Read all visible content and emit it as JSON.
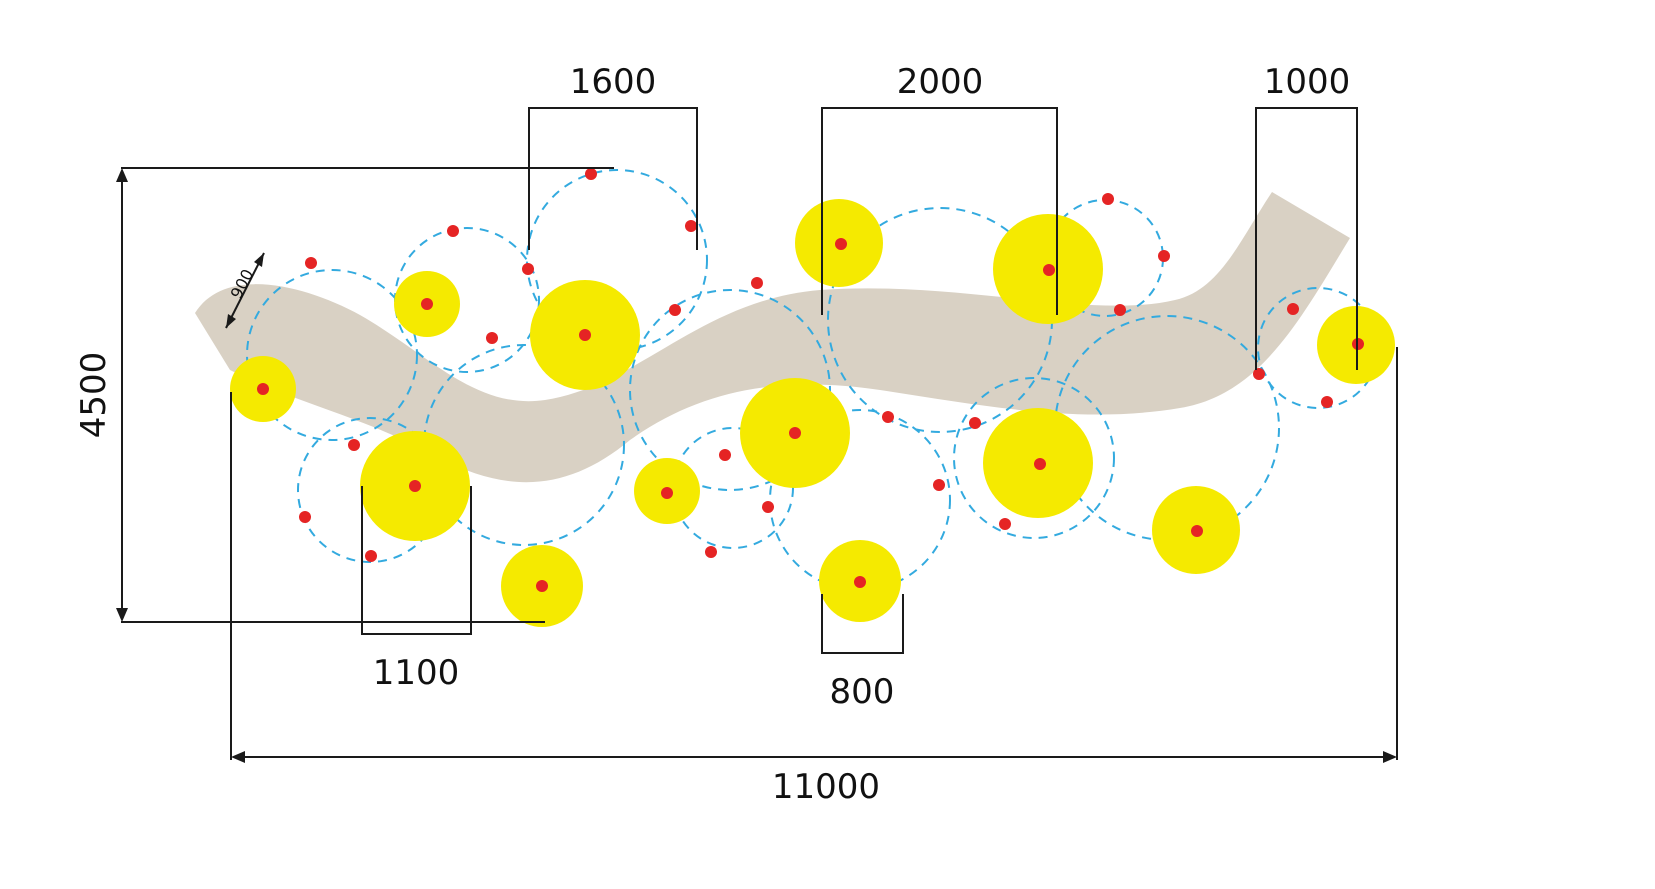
{
  "dimensions": {
    "top_left": "1600",
    "top_middle": "2000",
    "top_right": "1000",
    "height": "4500",
    "bottom_left": "1100",
    "bottom_middle": "800",
    "total_width": "11000",
    "path_width": "900"
  },
  "colors": {
    "path": "#d9d1c4",
    "plant": "#f5ea00",
    "spray_ring": "#33aadf",
    "sprinkler": "#e52424",
    "dimension": "#1a1a1a"
  }
}
